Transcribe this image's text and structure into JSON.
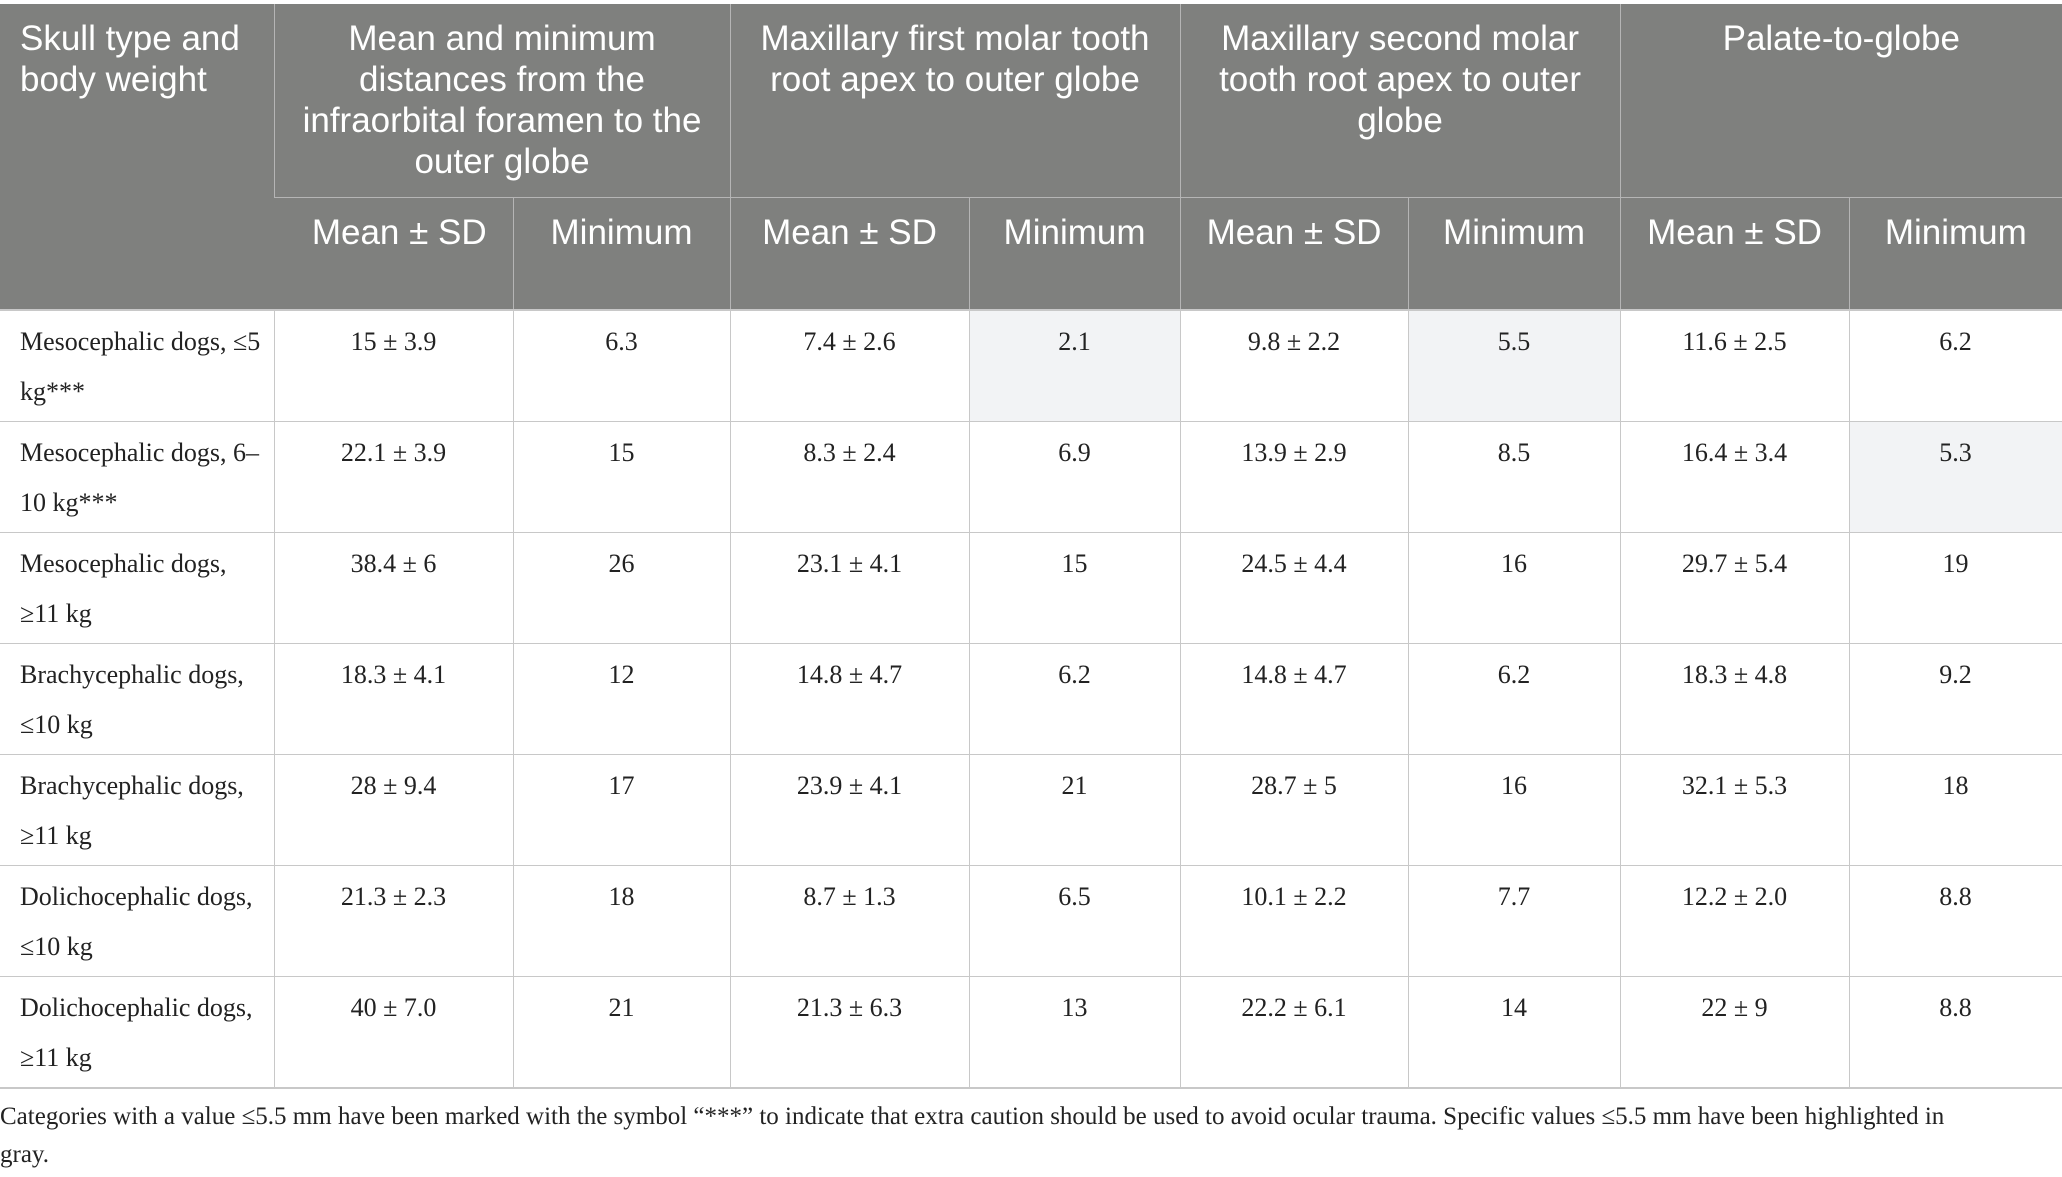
{
  "header": {
    "first_col": "Skull type and body weight",
    "groups": [
      "Mean and minimum distances from the infraorbital foramen to the outer globe",
      "Maxillary first molar tooth root apex to outer globe",
      "Maxillary second molar tooth root apex to outer globe",
      "Palate-to-globe"
    ],
    "sub_mean": "Mean ± SD",
    "sub_min": "Minimum"
  },
  "rows": [
    {
      "label": "Mesocephalic dogs, ≤5 kg***",
      "cells": [
        "15 ± 3.9",
        "6.3",
        "7.4 ± 2.6",
        "2.1",
        "9.8 ± 2.2",
        "5.5",
        "11.6 ± 2.5",
        "6.2"
      ],
      "highlight": [
        false,
        false,
        false,
        true,
        false,
        true,
        false,
        false
      ]
    },
    {
      "label": "Mesocephalic dogs, 6–10 kg***",
      "cells": [
        "22.1 ± 3.9",
        "15",
        "8.3 ± 2.4",
        "6.9",
        "13.9 ± 2.9",
        "8.5",
        "16.4 ± 3.4",
        "5.3"
      ],
      "highlight": [
        false,
        false,
        false,
        false,
        false,
        false,
        false,
        true
      ]
    },
    {
      "label": "Mesocephalic dogs, ≥11 kg",
      "cells": [
        "38.4 ± 6",
        "26",
        "23.1 ± 4.1",
        "15",
        "24.5 ± 4.4",
        "16",
        "29.7 ± 5.4",
        "19"
      ],
      "highlight": [
        false,
        false,
        false,
        false,
        false,
        false,
        false,
        false
      ]
    },
    {
      "label": "Brachycephalic dogs, ≤10 kg",
      "cells": [
        "18.3 ± 4.1",
        "12",
        "14.8 ± 4.7",
        "6.2",
        "14.8 ± 4.7",
        "6.2",
        "18.3 ± 4.8",
        "9.2"
      ],
      "highlight": [
        false,
        false,
        false,
        false,
        false,
        false,
        false,
        false
      ]
    },
    {
      "label": "Brachycephalic dogs, ≥11 kg",
      "cells": [
        "28 ± 9.4",
        "17",
        "23.9 ± 4.1",
        "21",
        "28.7 ± 5",
        "16",
        "32.1 ± 5.3",
        "18"
      ],
      "highlight": [
        false,
        false,
        false,
        false,
        false,
        false,
        false,
        false
      ]
    },
    {
      "label": "Dolichocephalic dogs, ≤10 kg",
      "cells": [
        "21.3 ± 2.3",
        "18",
        "8.7 ± 1.3",
        "6.5",
        "10.1 ± 2.2",
        "7.7",
        "12.2 ± 2.0",
        "8.8"
      ],
      "highlight": [
        false,
        false,
        false,
        false,
        false,
        false,
        false,
        false
      ]
    },
    {
      "label": "Dolichocephalic dogs, ≥11 kg",
      "cells": [
        "40 ± 7.0",
        "21",
        "21.3 ± 6.3",
        "13",
        "22.2 ± 6.1",
        "14",
        "22 ± 9",
        "8.8"
      ],
      "highlight": [
        false,
        false,
        false,
        false,
        false,
        false,
        false,
        false
      ]
    }
  ],
  "highlight_color": "#f2f3f5",
  "header_color": "#7f807e",
  "footnote": "Categories with a value ≤5.5 mm have been marked with the symbol “***” to indicate that extra caution should be used to avoid ocular trauma. Specific values ≤5.5 mm have been highlighted in gray."
}
